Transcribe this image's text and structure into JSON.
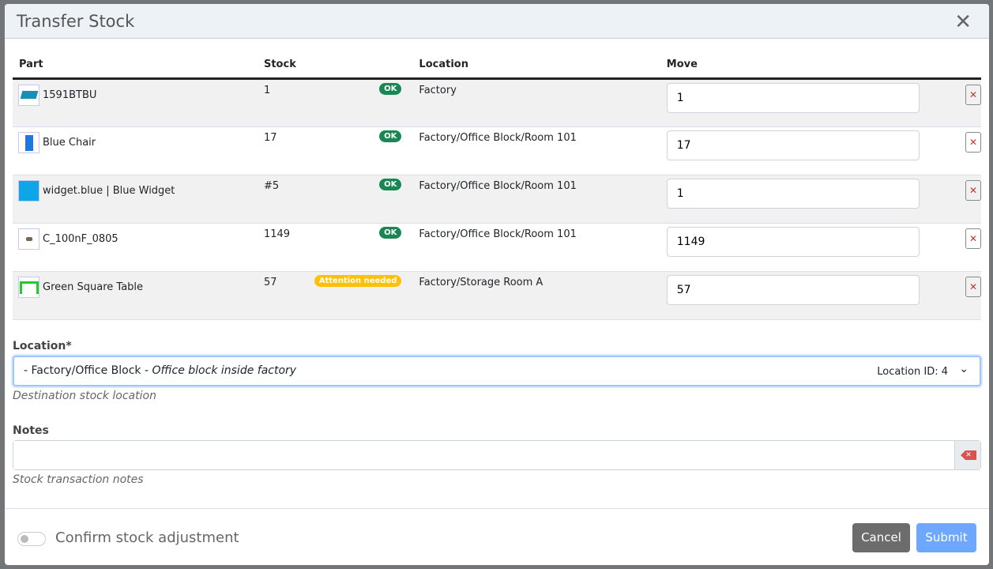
{
  "title": "Transfer Stock",
  "columns": {
    "part": "Part",
    "stock": "Stock",
    "location": "Location",
    "move": "Move"
  },
  "rows": [
    {
      "part": "1591BTBU",
      "stock": "1",
      "status": "OK",
      "location": "Factory",
      "move": "1"
    },
    {
      "part": "Blue Chair",
      "stock": "17",
      "status": "OK",
      "location": "Factory/Office Block/Room 101",
      "move": "17"
    },
    {
      "part": "widget.blue | Blue Widget",
      "stock": "#5",
      "status": "OK",
      "location": "Factory/Office Block/Room 101",
      "move": "1"
    },
    {
      "part": "C_100nF_0805",
      "stock": "1149",
      "status": "OK",
      "location": "Factory/Office Block/Room 101",
      "move": "1149"
    },
    {
      "part": "Green Square Table",
      "stock": "57",
      "status": "Attention needed",
      "location": "Factory/Storage Room A",
      "move": "57"
    }
  ],
  "location": {
    "label": "Location*",
    "value": "- Factory/Office Block - ",
    "description": "Office block inside factory",
    "id": "Location ID: 4",
    "help": "Destination stock location"
  },
  "notes": {
    "label": "Notes",
    "value": "",
    "help": "Stock transaction notes"
  },
  "footer": {
    "confirm": "Confirm stock adjustment",
    "confirm_on": false,
    "cancel": "Cancel",
    "submit": "Submit"
  },
  "colors": {
    "ok": "#198754",
    "warning": "#ffc107",
    "submit": "#6ea8fe"
  }
}
